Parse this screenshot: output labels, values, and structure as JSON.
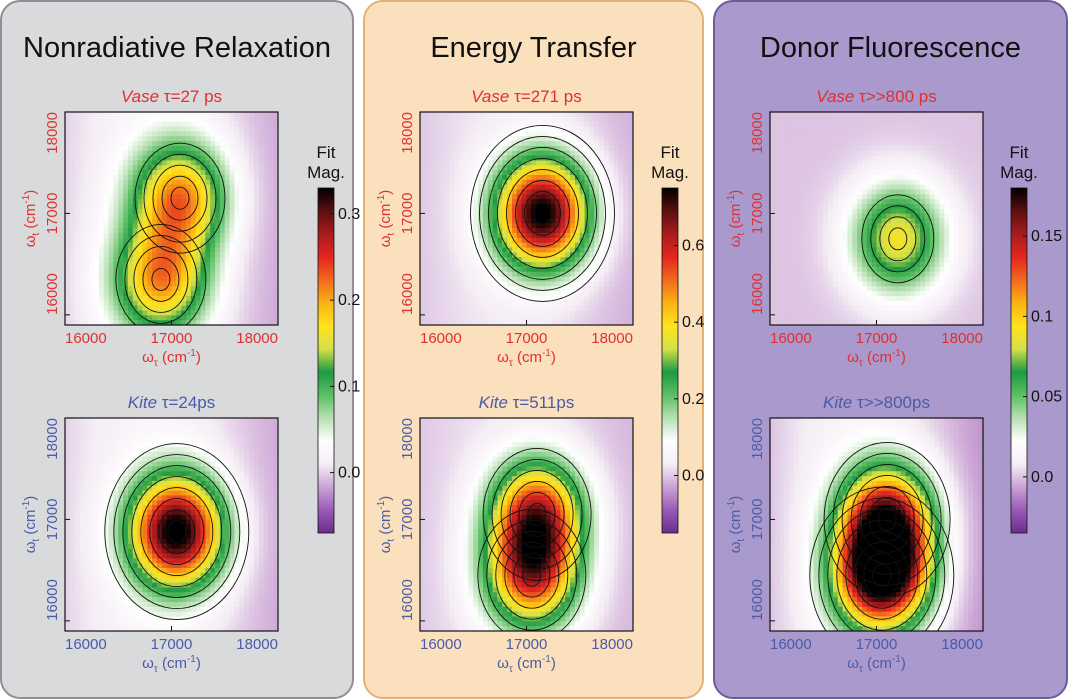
{
  "colors": {
    "panel_bg": [
      "#d9dadc",
      "#fbe0bd",
      "#a999cc"
    ],
    "panel_border": [
      "#8d8f94",
      "#e6b073",
      "#6e5a9a"
    ],
    "vase_label": "#e0302f",
    "kite_label": "#4b5ba8",
    "colormap": [
      "#6a2d8f",
      "#9a5ab8",
      "#caa3d4",
      "#f5eef5",
      "#ffffff",
      "#b7e0b3",
      "#5bbf63",
      "#1e9a43",
      "#d4e04a",
      "#ffe31c",
      "#fbb214",
      "#f26a1d",
      "#e3261f",
      "#a71c1e",
      "#5a0f10",
      "#000000"
    ]
  },
  "panels": [
    {
      "title": "Nonradiative Relaxation",
      "colorbar": {
        "title_line1": "Fit",
        "title_line2": "Mag.",
        "ticks": [
          "0.3",
          "0.2",
          "0.1",
          "0.0"
        ]
      }
    },
    {
      "title": "Energy Transfer",
      "colorbar": {
        "title_line1": "Fit",
        "title_line2": "Mag.",
        "ticks": [
          "0.6",
          "0.4",
          "0.2",
          "0.0"
        ]
      }
    },
    {
      "title": "Donor Fluorescence",
      "colorbar": {
        "title_line1": "Fit",
        "title_line2": "Mag.",
        "ticks": [
          "0.15",
          "0.1",
          "0.05",
          "0.0"
        ]
      }
    }
  ],
  "axis": {
    "ylabel": "ω_t (cm⁻¹)",
    "xlabel": "ω_τ (cm⁻¹)",
    "xticks": [
      "16000",
      "17000",
      "18000"
    ],
    "yticks": [
      "16000",
      "17000",
      "18000"
    ]
  },
  "chart_data": [
    {
      "type": "heatmap",
      "panel": "Nonradiative Relaxation",
      "row": "Vase",
      "title_italic": "Vase",
      "title_rest": " τ=27 ps",
      "xlim": [
        16000,
        18000
      ],
      "ylim": [
        15900,
        18000
      ],
      "colorbar_range": [
        -0.07,
        0.33
      ],
      "peaks": [
        {
          "x": 17080,
          "y": 17150,
          "amp": 0.2
        },
        {
          "x": 16900,
          "y": 16350,
          "amp": 0.19
        }
      ],
      "background": 0.03
    },
    {
      "type": "heatmap",
      "panel": "Nonradiative Relaxation",
      "row": "Kite",
      "title_italic": "Kite",
      "title_rest": " τ=24ps",
      "xlim": [
        16000,
        18000
      ],
      "ylim": [
        15900,
        18000
      ],
      "colorbar_range": [
        -0.07,
        0.33
      ],
      "peaks": [
        {
          "x": 17050,
          "y": 16880,
          "amp": 0.33
        }
      ],
      "background": 0.03
    },
    {
      "type": "heatmap",
      "panel": "Energy Transfer",
      "row": "Vase",
      "title_italic": "Vase",
      "title_rest": " τ=271 ps",
      "xlim": [
        16000,
        18000
      ],
      "ylim": [
        15900,
        18000
      ],
      "colorbar_range": [
        -0.15,
        0.75
      ],
      "peaks": [
        {
          "x": 17150,
          "y": 17000,
          "amp": 0.75
        }
      ],
      "background": 0.04
    },
    {
      "type": "heatmap",
      "panel": "Energy Transfer",
      "row": "Kite",
      "title_italic": "Kite",
      "title_rest": " τ=511ps",
      "xlim": [
        16000,
        18000
      ],
      "ylim": [
        15900,
        18000
      ],
      "colorbar_range": [
        -0.15,
        0.75
      ],
      "peaks": [
        {
          "x": 17100,
          "y": 17050,
          "amp": 0.56
        },
        {
          "x": 17050,
          "y": 16450,
          "amp": 0.52
        }
      ],
      "background": 0.03
    },
    {
      "type": "heatmap",
      "panel": "Donor Fluorescence",
      "row": "Vase",
      "title_italic": "Vase",
      "title_rest": " τ>>800 ps",
      "xlim": [
        16000,
        18000
      ],
      "ylim": [
        15900,
        18000
      ],
      "colorbar_range": [
        -0.035,
        0.18
      ],
      "peaks": [
        {
          "x": 17200,
          "y": 16750,
          "amp": 0.09
        }
      ],
      "background": 0.0
    },
    {
      "type": "heatmap",
      "panel": "Donor Fluorescence",
      "row": "Kite",
      "title_italic": "Kite",
      "title_rest": " τ>>800ps",
      "xlim": [
        16000,
        18000
      ],
      "ylim": [
        15900,
        18000
      ],
      "colorbar_range": [
        -0.035,
        0.18
      ],
      "peaks": [
        {
          "x": 17050,
          "y": 16450,
          "amp": 0.18
        },
        {
          "x": 17100,
          "y": 17000,
          "amp": 0.14
        }
      ],
      "background": 0.02
    }
  ]
}
